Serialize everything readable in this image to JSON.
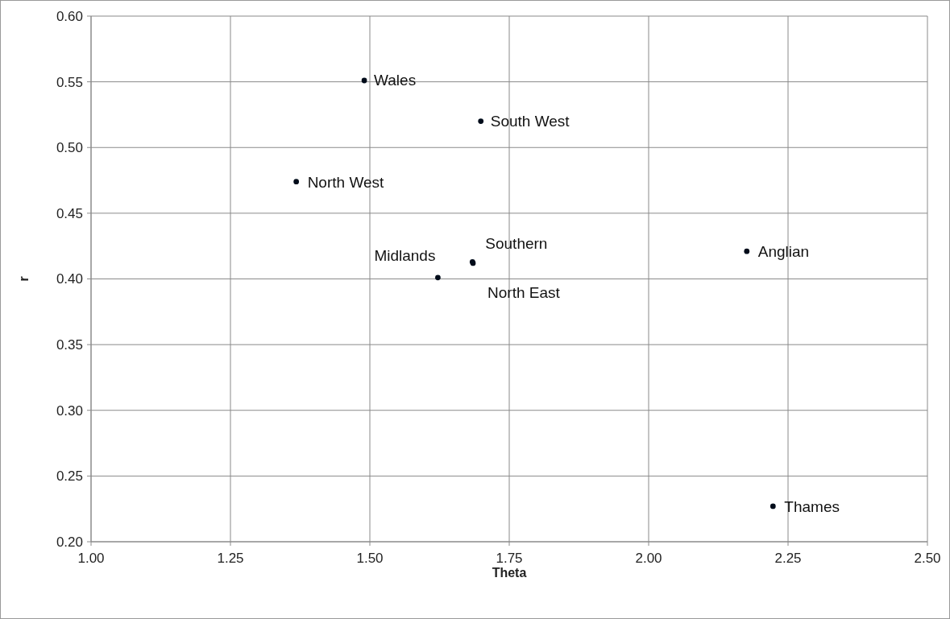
{
  "chart_data": {
    "type": "scatter",
    "xlabel": "Theta",
    "ylabel": "r",
    "x": [
      1.49,
      1.699,
      1.368,
      2.176,
      2.223,
      1.622,
      1.684,
      1.685
    ],
    "series": [
      {
        "color": "#000c1a",
        "values": [
          0.551,
          0.52,
          0.474,
          0.421,
          0.227,
          0.401,
          0.413,
          0.412
        ]
      }
    ],
    "annotations": [
      {
        "text": "Wales",
        "x": 1.49,
        "y": 0.551
      },
      {
        "text": "South West",
        "x": 1.699,
        "y": 0.52
      },
      {
        "text": "North West",
        "x": 1.368,
        "y": 0.474
      },
      {
        "text": "Anglian",
        "x": 2.176,
        "y": 0.421
      },
      {
        "text": "Thames",
        "x": 2.223,
        "y": 0.227
      },
      {
        "text": "Midlands",
        "x": 1.622,
        "y": 0.401
      },
      {
        "text": "Southern",
        "x": 1.684,
        "y": 0.413
      },
      {
        "text": "North East",
        "x": 1.685,
        "y": 0.412
      }
    ],
    "xlim": [
      1.0,
      2.5
    ],
    "xticks": [
      {
        "value": 1,
        "label": "1.00"
      },
      {
        "value": 1.25,
        "label": "1.25"
      },
      {
        "value": 1.5,
        "label": "1.50"
      },
      {
        "value": 1.75,
        "label": "1.75"
      },
      {
        "value": 2,
        "label": "2.00"
      },
      {
        "value": 2.25,
        "label": "2.25"
      },
      {
        "value": 2.5,
        "label": "2.50"
      }
    ],
    "ylim": [
      0.2,
      0.6
    ],
    "yticks": [
      {
        "value": 0.2,
        "label": "0.20"
      },
      {
        "value": 0.25,
        "label": "0.25"
      },
      {
        "value": 0.3,
        "label": "0.30"
      },
      {
        "value": 0.35,
        "label": "0.35"
      },
      {
        "value": 0.4,
        "label": "0.40"
      },
      {
        "value": 0.45,
        "label": "0.45"
      },
      {
        "value": 0.5,
        "label": "0.50"
      },
      {
        "value": 0.55,
        "label": "0.55"
      },
      {
        "value": 0.6,
        "label": "0.60"
      }
    ],
    "grid": true,
    "marker": "circle"
  }
}
